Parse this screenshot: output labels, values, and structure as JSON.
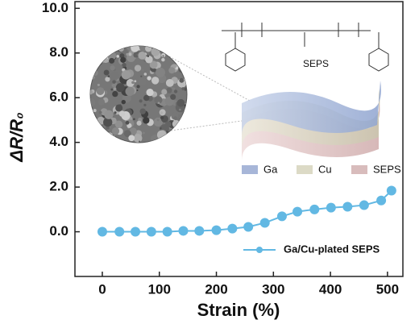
{
  "chart_data": {
    "type": "line",
    "x_label": "Strain (%)",
    "y_label": "ΔR/R₀",
    "x": [
      0,
      30,
      58,
      86,
      114,
      142,
      170,
      200,
      228,
      256,
      285,
      315,
      342,
      372,
      401,
      430,
      459,
      489,
      507
    ],
    "series": [
      {
        "name": "Ga/Cu-plated SEPS",
        "color": "#62b8e3",
        "values": [
          0,
          0,
          0,
          0,
          0,
          0.04,
          0.04,
          0.07,
          0.14,
          0.22,
          0.4,
          0.69,
          0.9,
          1.0,
          1.08,
          1.12,
          1.19,
          1.4,
          1.84
        ]
      }
    ],
    "xlim": [
      -48,
      527
    ],
    "ylim": [
      -2,
      10.3
    ],
    "xticks": [
      0,
      100,
      200,
      300,
      400,
      500
    ],
    "yticks": [
      {
        "value": 0,
        "label": "0.0"
      },
      {
        "value": 2,
        "label": "2.0"
      },
      {
        "value": 4,
        "label": "4.0"
      },
      {
        "value": 6,
        "label": "6.0"
      },
      {
        "value": 8,
        "label": "8.0"
      },
      {
        "value": 10,
        "label": "10.0"
      }
    ],
    "legend_position": "lower right",
    "structure_label": "SEPS",
    "layer_legend": [
      {
        "name": "Ga",
        "color": "#a7b6d8"
      },
      {
        "name": "Cu",
        "color": "#dcdac6"
      },
      {
        "name": "SEPS",
        "color": "#d8bcbc"
      }
    ]
  }
}
